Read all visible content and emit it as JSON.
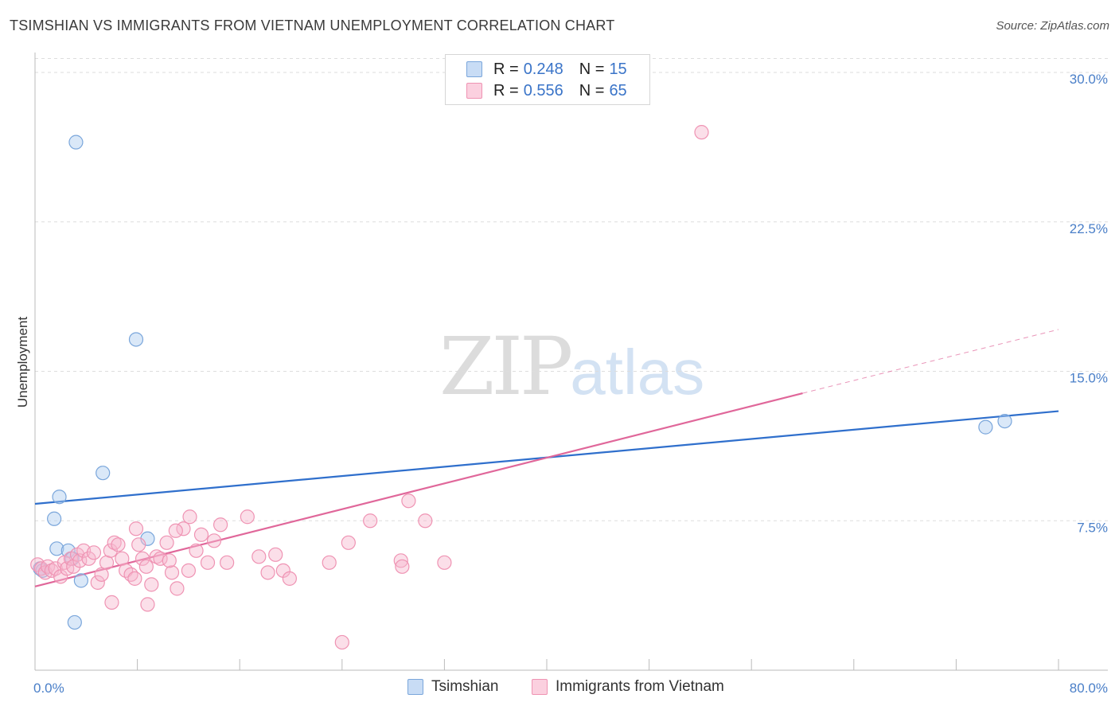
{
  "header": {
    "title": "TSIMSHIAN VS IMMIGRANTS FROM VIETNAM UNEMPLOYMENT CORRELATION CHART",
    "source": "Source: ZipAtlas.com"
  },
  "watermark": {
    "zip": "ZIP",
    "atlas": "atlas"
  },
  "legend": {
    "rows": [
      {
        "r_label": "R =",
        "r_value": "0.248",
        "n_label": "N =",
        "n_value": "15"
      },
      {
        "r_label": "R =",
        "r_value": "0.556",
        "n_label": "N =",
        "n_value": "65"
      }
    ]
  },
  "bottom_legend": {
    "series1": "Tsimshian",
    "series2": "Immigrants from Vietnam"
  },
  "colors": {
    "series1_fill": "#aecbf0",
    "series1_stroke": "#7aa6db",
    "series1_line": "#2f6fcc",
    "series2_fill": "#f7b9cf",
    "series2_stroke": "#ef93b3",
    "series2_line": "#e0679a",
    "tick": "#4a7fc8",
    "grid": "#dddddd"
  },
  "chart_data": {
    "type": "scatter",
    "title": "TSIMSHIAN VS IMMIGRANTS FROM VIETNAM UNEMPLOYMENT CORRELATION CHART",
    "xlabel": "",
    "ylabel": "Unemployment",
    "xlim": [
      0,
      80
    ],
    "ylim": [
      0,
      31
    ],
    "x_ticks": [
      0,
      8,
      16,
      24,
      32,
      40,
      48,
      56,
      64,
      72,
      80
    ],
    "x_tick_labels": {
      "0": "0.0%",
      "80": "80.0%"
    },
    "y_ticks": [
      7.5,
      15.0,
      22.5,
      30.0
    ],
    "y_tick_labels": [
      "7.5%",
      "15.0%",
      "22.5%",
      "30.0%"
    ],
    "series": [
      {
        "name": "Tsimshian",
        "r": 0.248,
        "n": 15,
        "points": [
          [
            0.4,
            5.1
          ],
          [
            0.6,
            5.0
          ],
          [
            1.5,
            7.6
          ],
          [
            1.9,
            8.7
          ],
          [
            1.7,
            6.1
          ],
          [
            2.6,
            6.0
          ],
          [
            2.9,
            5.6
          ],
          [
            3.6,
            4.5
          ],
          [
            3.1,
            2.4
          ],
          [
            5.3,
            9.9
          ],
          [
            7.9,
            16.6
          ],
          [
            3.2,
            26.5
          ],
          [
            8.8,
            6.6
          ],
          [
            74.3,
            12.2
          ],
          [
            75.8,
            12.5
          ]
        ],
        "trend": {
          "x0": 0,
          "y0": 8.35,
          "x1": 80,
          "y1": 13.0
        }
      },
      {
        "name": "Immigrants from Vietnam",
        "r": 0.556,
        "n": 65,
        "points": [
          [
            0.2,
            5.3
          ],
          [
            0.5,
            5.1
          ],
          [
            0.8,
            4.9
          ],
          [
            1.0,
            5.2
          ],
          [
            1.3,
            5.0
          ],
          [
            1.6,
            5.1
          ],
          [
            2.0,
            4.7
          ],
          [
            2.3,
            5.4
          ],
          [
            2.5,
            5.1
          ],
          [
            2.8,
            5.6
          ],
          [
            3.0,
            5.2
          ],
          [
            3.3,
            5.8
          ],
          [
            3.5,
            5.5
          ],
          [
            3.8,
            6.0
          ],
          [
            4.2,
            5.6
          ],
          [
            4.6,
            5.9
          ],
          [
            4.9,
            4.4
          ],
          [
            5.2,
            4.8
          ],
          [
            5.6,
            5.4
          ],
          [
            5.9,
            6.0
          ],
          [
            6.2,
            6.4
          ],
          [
            6.5,
            6.3
          ],
          [
            6.8,
            5.6
          ],
          [
            7.1,
            5.0
          ],
          [
            7.5,
            4.8
          ],
          [
            7.8,
            4.6
          ],
          [
            8.1,
            6.3
          ],
          [
            8.4,
            5.6
          ],
          [
            8.7,
            5.2
          ],
          [
            9.1,
            4.3
          ],
          [
            9.5,
            5.7
          ],
          [
            9.8,
            5.6
          ],
          [
            10.3,
            6.4
          ],
          [
            10.7,
            4.9
          ],
          [
            11.1,
            4.1
          ],
          [
            11.6,
            7.1
          ],
          [
            12.1,
            7.7
          ],
          [
            12.6,
            6.0
          ],
          [
            13.0,
            6.8
          ],
          [
            13.5,
            5.4
          ],
          [
            14.0,
            6.5
          ],
          [
            14.5,
            7.3
          ],
          [
            16.6,
            7.7
          ],
          [
            17.5,
            5.7
          ],
          [
            18.2,
            4.9
          ],
          [
            18.8,
            5.8
          ],
          [
            19.4,
            5.0
          ],
          [
            19.9,
            4.6
          ],
          [
            23.0,
            5.4
          ],
          [
            24.5,
            6.4
          ],
          [
            26.2,
            7.5
          ],
          [
            28.6,
            5.5
          ],
          [
            28.7,
            5.2
          ],
          [
            29.2,
            8.5
          ],
          [
            30.5,
            7.5
          ],
          [
            32.0,
            5.4
          ],
          [
            24.0,
            1.4
          ],
          [
            52.1,
            27.0
          ],
          [
            6.0,
            3.4
          ],
          [
            8.8,
            3.3
          ],
          [
            11.0,
            7.0
          ],
          [
            7.9,
            7.1
          ],
          [
            15.0,
            5.4
          ],
          [
            10.5,
            5.5
          ],
          [
            12.0,
            5.0
          ]
        ],
        "trend": {
          "x0": 0,
          "y0": 4.2,
          "x1": 60,
          "y1": 13.9,
          "dash_to_x": 80,
          "dash_to_y": 17.1
        }
      }
    ]
  }
}
